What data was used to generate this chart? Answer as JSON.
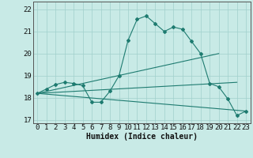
{
  "xlabel": "Humidex (Indice chaleur)",
  "bg_color": "#c8eae6",
  "line_color": "#1e7b70",
  "grid_color": "#a0d0cc",
  "xlim": [
    -0.5,
    23.5
  ],
  "ylim": [
    16.85,
    22.35
  ],
  "yticks": [
    17,
    18,
    19,
    20,
    21,
    22
  ],
  "xticks": [
    0,
    1,
    2,
    3,
    4,
    5,
    6,
    7,
    8,
    9,
    10,
    11,
    12,
    13,
    14,
    15,
    16,
    17,
    18,
    19,
    20,
    21,
    22,
    23
  ],
  "line1_x": [
    0,
    1,
    2,
    3,
    4,
    5,
    6,
    7,
    8,
    9,
    10,
    11,
    12,
    13,
    14,
    15,
    16,
    17,
    18,
    19,
    20,
    21,
    22,
    23
  ],
  "line1_y": [
    18.2,
    18.4,
    18.6,
    18.7,
    18.65,
    18.55,
    17.8,
    17.8,
    18.3,
    19.0,
    20.6,
    21.55,
    21.7,
    21.35,
    21.0,
    21.2,
    21.1,
    20.55,
    20.0,
    18.65,
    18.5,
    17.95,
    17.2,
    17.4
  ],
  "line2_x": [
    0,
    23
  ],
  "line2_y": [
    18.2,
    17.4
  ],
  "line3_x": [
    0,
    20
  ],
  "line3_y": [
    18.2,
    20.0
  ],
  "line4_x": [
    0,
    22
  ],
  "line4_y": [
    18.2,
    18.7
  ],
  "xlabel_fontsize": 7,
  "tick_fontsize": 6.5
}
